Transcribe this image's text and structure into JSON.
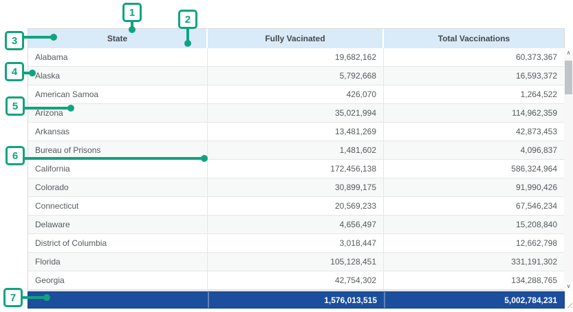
{
  "table": {
    "columns": [
      {
        "label": "State"
      },
      {
        "label": "Fully Vacinated"
      },
      {
        "label": "Total Vaccinations"
      }
    ],
    "rows": [
      {
        "state": "Alabama",
        "fully_vaccinated": "19,682,162",
        "total_vaccinations": "60,373,367"
      },
      {
        "state": "Alaska",
        "fully_vaccinated": "5,792,668",
        "total_vaccinations": "16,593,372"
      },
      {
        "state": "American Samoa",
        "fully_vaccinated": "426,070",
        "total_vaccinations": "1,264,522"
      },
      {
        "state": "Arizona",
        "fully_vaccinated": "35,021,994",
        "total_vaccinations": "114,962,359"
      },
      {
        "state": "Arkansas",
        "fully_vaccinated": "13,481,269",
        "total_vaccinations": "42,873,453"
      },
      {
        "state": "Bureau of Prisons",
        "fully_vaccinated": "1,481,602",
        "total_vaccinations": "4,096,837"
      },
      {
        "state": "California",
        "fully_vaccinated": "172,456,138",
        "total_vaccinations": "586,324,964"
      },
      {
        "state": "Colorado",
        "fully_vaccinated": "30,899,175",
        "total_vaccinations": "91,990,426"
      },
      {
        "state": "Connecticut",
        "fully_vaccinated": "20,569,233",
        "total_vaccinations": "67,546,234"
      },
      {
        "state": "Delaware",
        "fully_vaccinated": "4,656,497",
        "total_vaccinations": "15,208,840"
      },
      {
        "state": "District of Columbia",
        "fully_vaccinated": "3,018,447",
        "total_vaccinations": "12,662,798"
      },
      {
        "state": "Florida",
        "fully_vaccinated": "105,128,451",
        "total_vaccinations": "331,191,302"
      },
      {
        "state": "Georgia",
        "fully_vaccinated": "42,754,302",
        "total_vaccinations": "134,288,765"
      }
    ],
    "totals": {
      "state": "",
      "fully_vaccinated": "1,576,013,515",
      "total_vaccinations": "5,002,784,231"
    }
  },
  "callouts": [
    {
      "label": "1"
    },
    {
      "label": "2"
    },
    {
      "label": "3"
    },
    {
      "label": "4"
    },
    {
      "label": "5"
    },
    {
      "label": "6"
    },
    {
      "label": "7"
    }
  ],
  "scrollbar": {
    "up_icon": "∧",
    "down_icon": "∨"
  },
  "colors": {
    "callout_accent": "#10a37f",
    "header_bg": "#d9eaf8",
    "totals_bg": "#1b4f9e",
    "totals_text": "#ffffff",
    "row_alt_bg": "#f7f8f8",
    "grid_border": "#e6e6e6"
  }
}
